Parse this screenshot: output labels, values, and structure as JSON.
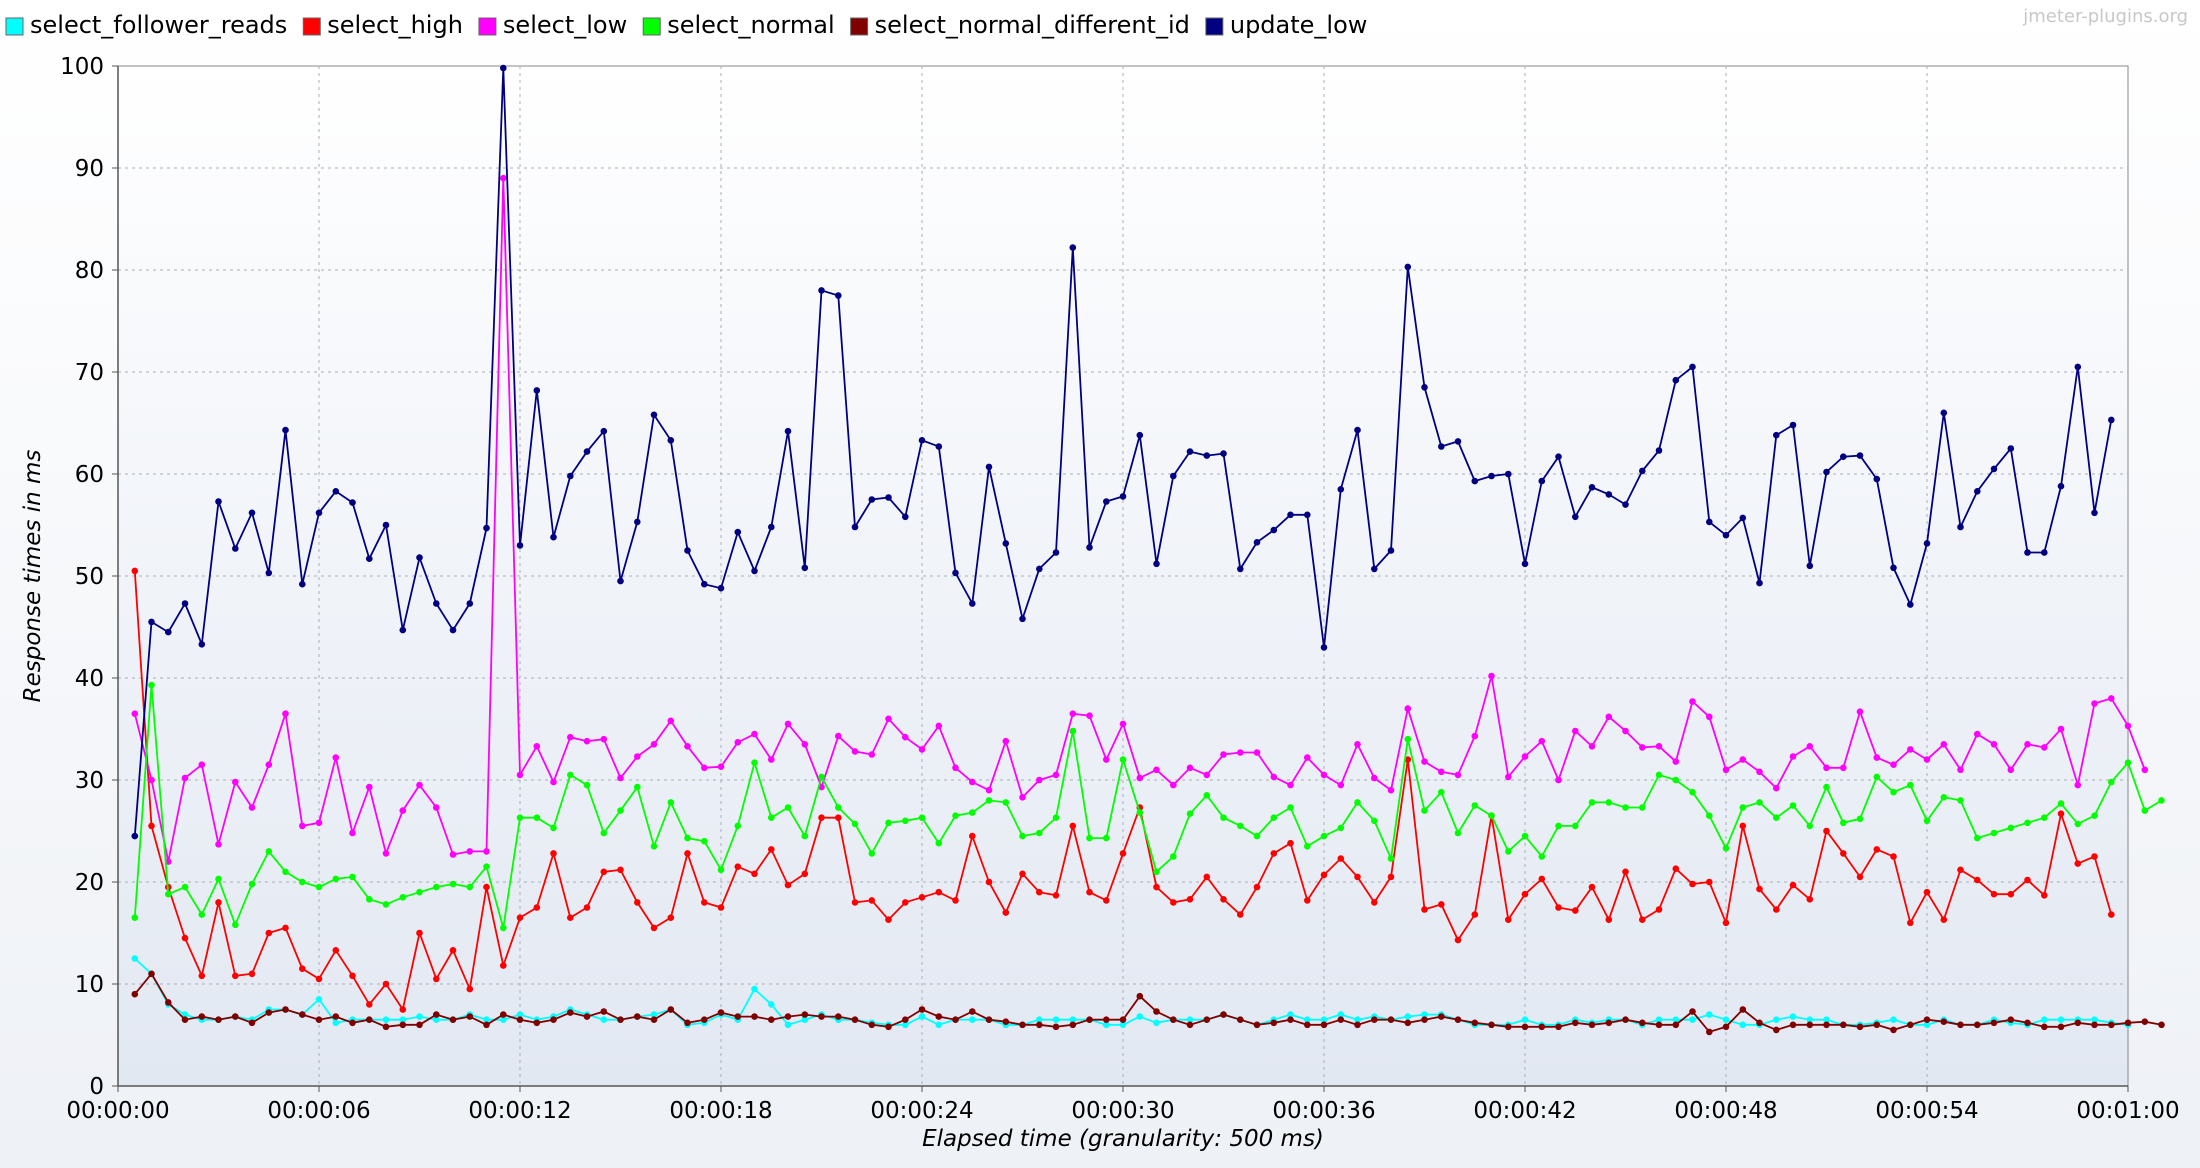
{
  "watermark": "jmeter-plugins.org",
  "chart_data": {
    "type": "line",
    "title": "",
    "xlabel": "Elapsed time (granularity: 500 ms)",
    "ylabel": "Response times in ms",
    "xlim": [
      0,
      60
    ],
    "ylim": [
      0,
      100
    ],
    "x_ticks": [
      0,
      6,
      12,
      18,
      24,
      30,
      36,
      42,
      48,
      54,
      60
    ],
    "x_tick_labels": [
      "00:00:00",
      "00:00:06",
      "00:00:12",
      "00:00:18",
      "00:00:24",
      "00:00:30",
      "00:00:36",
      "00:00:42",
      "00:00:48",
      "00:00:54",
      "00:01:00"
    ],
    "y_ticks": [
      0,
      10,
      20,
      30,
      40,
      50,
      60,
      70,
      80,
      90,
      100
    ],
    "y_tick_labels": [
      "0",
      "10",
      "20",
      "30",
      "40",
      "50",
      "60",
      "70",
      "80",
      "90",
      "100"
    ],
    "grid": true,
    "legend_position": "top",
    "x_start": 0.5,
    "x_step": 0.5,
    "series": [
      {
        "name": "select_follower_reads",
        "color": "#00ffff",
        "values": [
          12.5,
          11,
          8,
          7,
          6.5,
          6.5,
          6.8,
          6.5,
          7.5,
          7.5,
          7,
          8.5,
          6.2,
          6.5,
          6.5,
          6.5,
          6.5,
          6.8,
          6.5,
          6.5,
          7,
          6.5,
          6.5,
          7,
          6.5,
          6.8,
          7.5,
          7,
          6.5,
          6.5,
          6.8,
          7,
          7.5,
          6,
          6.2,
          7,
          6.5,
          9.5,
          8,
          6,
          6.5,
          7,
          6.5,
          6.5,
          6.2,
          6,
          6,
          6.8,
          6,
          6.5,
          6.5,
          6.5,
          6,
          6,
          6.5,
          6.5,
          6.5,
          6.5,
          6,
          6,
          6.8,
          6.2,
          6.5,
          6.5,
          6.5,
          7,
          6.5,
          6,
          6.5,
          7,
          6.5,
          6.5,
          7,
          6.5,
          6.8,
          6.5,
          6.8,
          7,
          7,
          6.5,
          6,
          6,
          6,
          6.5,
          6,
          6,
          6.5,
          6.2,
          6.5,
          6.5,
          6,
          6.5,
          6.5,
          6.5,
          7,
          6.5,
          6,
          6,
          6.5,
          6.8,
          6.5,
          6.5,
          6,
          6,
          6.2,
          6.5,
          6,
          6,
          6.5,
          6,
          6,
          6.5,
          6.2,
          6,
          6.5,
          6.5,
          6.5,
          6.5,
          6.2,
          6
        ]
      },
      {
        "name": "select_high",
        "color": "#ff0000",
        "values": [
          50.5,
          25.5,
          19.5,
          14.5,
          10.8,
          18,
          10.8,
          11,
          15,
          15.5,
          11.5,
          10.5,
          13.3,
          10.8,
          8,
          10,
          7.5,
          15,
          10.5,
          13.3,
          9.5,
          19.5,
          11.8,
          16.5,
          17.5,
          22.8,
          16.5,
          17.5,
          21,
          21.2,
          18,
          15.5,
          16.5,
          22.8,
          18,
          17.5,
          21.5,
          20.8,
          23.2,
          19.7,
          20.8,
          26.3,
          26.3,
          18,
          18.2,
          16.3,
          18,
          18.5,
          19,
          18.2,
          24.5,
          20,
          17,
          20.8,
          19,
          18.7,
          25.5,
          19,
          18.2,
          22.8,
          27.3,
          19.5,
          18,
          18.3,
          20.5,
          18.3,
          16.8,
          19.5,
          22.8,
          23.8,
          18.2,
          20.7,
          22.3,
          20.5,
          18,
          20.5,
          32,
          17.3,
          17.8,
          14.3,
          16.8,
          26.5,
          16.3,
          18.8,
          20.3,
          17.5,
          17.2,
          19.5,
          16.3,
          21,
          16.3,
          17.3,
          21.3,
          19.8,
          20,
          16,
          25.5,
          19.3,
          17.3,
          19.7,
          18.3,
          25,
          22.8,
          20.5,
          23.2,
          22.5,
          16,
          19,
          16.3,
          21.2,
          20.2,
          18.8,
          18.8,
          20.2,
          18.7,
          26.7,
          21.8,
          22.5,
          16.8
        ]
      },
      {
        "name": "select_low",
        "color": "#ff00ff",
        "values": [
          36.5,
          30,
          22,
          30.2,
          31.5,
          23.7,
          29.8,
          27.3,
          31.5,
          36.5,
          25.5,
          25.8,
          32.2,
          24.8,
          29.3,
          22.8,
          27,
          29.5,
          27.3,
          22.7,
          23,
          23,
          89,
          30.5,
          33.3,
          29.8,
          34.2,
          33.8,
          34,
          30.2,
          32.3,
          33.5,
          35.8,
          33.3,
          31.2,
          31.3,
          33.7,
          34.5,
          32,
          35.5,
          33.5,
          29.3,
          34.3,
          32.8,
          32.5,
          36,
          34.2,
          33,
          35.3,
          31.2,
          29.8,
          29,
          33.8,
          28.3,
          30,
          30.5,
          36.5,
          36.3,
          32,
          35.5,
          30.2,
          31,
          29.5,
          31.2,
          30.5,
          32.5,
          32.7,
          32.7,
          30.3,
          29.5,
          32.2,
          30.5,
          29.5,
          33.5,
          30.2,
          29,
          37,
          31.8,
          30.8,
          30.5,
          34.3,
          40.2,
          30.3,
          32.3,
          33.8,
          30,
          34.8,
          33.3,
          36.2,
          34.8,
          33.2,
          33.3,
          31.8,
          37.7,
          36.2,
          31,
          32,
          30.8,
          29.2,
          32.3,
          33.3,
          31.2,
          31.2,
          36.7,
          32.2,
          31.5,
          33,
          32,
          33.5,
          31,
          34.5,
          33.5,
          31,
          33.5,
          33.2,
          35,
          29.5,
          37.5,
          38,
          35.3,
          31
        ]
      },
      {
        "name": "select_normal",
        "color": "#00ff00",
        "values": [
          16.5,
          39.3,
          18.8,
          19.5,
          16.8,
          20.3,
          15.8,
          19.8,
          23,
          21,
          20,
          19.5,
          20.3,
          20.5,
          18.3,
          17.8,
          18.5,
          19,
          19.5,
          19.8,
          19.5,
          21.5,
          15.5,
          26.3,
          26.3,
          25.3,
          30.5,
          29.5,
          24.8,
          27,
          29.3,
          23.5,
          27.8,
          24.3,
          24,
          21.2,
          25.5,
          31.7,
          26.3,
          27.3,
          24.5,
          30.3,
          27.3,
          25.7,
          22.8,
          25.8,
          26,
          26.3,
          23.8,
          26.5,
          26.8,
          28,
          27.8,
          24.5,
          24.8,
          26.3,
          34.8,
          24.3,
          24.3,
          32,
          26.8,
          21,
          22.5,
          26.7,
          28.5,
          26.3,
          25.5,
          24.5,
          26.3,
          27.3,
          23.5,
          24.5,
          25.3,
          27.8,
          26,
          22.3,
          34,
          27,
          28.8,
          24.8,
          27.5,
          26.5,
          23,
          24.5,
          22.5,
          25.5,
          25.5,
          27.8,
          27.8,
          27.3,
          27.3,
          30.5,
          30,
          28.8,
          26.5,
          23.3,
          27.3,
          27.8,
          26.3,
          27.5,
          25.5,
          29.3,
          25.8,
          26.2,
          30.3,
          28.8,
          29.5,
          26,
          28.3,
          28,
          24.3,
          24.8,
          25.3,
          25.8,
          26.3,
          27.7,
          25.7,
          26.5,
          29.8,
          31.7,
          27,
          28
        ]
      },
      {
        "name": "select_normal_different_id",
        "color": "#800000",
        "values": [
          9,
          11,
          8.2,
          6.5,
          6.8,
          6.5,
          6.8,
          6.2,
          7.2,
          7.5,
          7,
          6.5,
          6.8,
          6.2,
          6.5,
          5.8,
          6,
          6,
          7,
          6.5,
          6.8,
          6,
          7,
          6.5,
          6.2,
          6.5,
          7.2,
          6.8,
          7.3,
          6.5,
          6.8,
          6.5,
          7.5,
          6.2,
          6.5,
          7.2,
          6.8,
          6.8,
          6.5,
          6.8,
          7,
          6.8,
          6.8,
          6.5,
          6,
          5.8,
          6.5,
          7.5,
          6.8,
          6.5,
          7.3,
          6.5,
          6.3,
          6,
          6,
          5.8,
          6,
          6.5,
          6.5,
          6.5,
          8.8,
          7.3,
          6.5,
          6,
          6.5,
          7,
          6.5,
          6,
          6.2,
          6.5,
          6,
          6,
          6.5,
          6,
          6.5,
          6.5,
          6.2,
          6.5,
          6.8,
          6.5,
          6.2,
          6,
          5.8,
          5.8,
          5.8,
          5.8,
          6.2,
          6,
          6.2,
          6.5,
          6.2,
          6,
          6,
          7.3,
          5.3,
          5.8,
          7.5,
          6.2,
          5.5,
          6,
          6,
          6,
          6,
          5.8,
          6,
          5.5,
          6,
          6.5,
          6.3,
          6,
          6,
          6.2,
          6.5,
          6.2,
          5.8,
          5.8,
          6.2,
          6,
          6,
          6.2,
          6.3,
          6
        ]
      },
      {
        "name": "update_low",
        "color": "#000080",
        "values": [
          24.5,
          45.5,
          44.5,
          47.3,
          43.3,
          57.3,
          52.7,
          56.2,
          50.3,
          64.3,
          49.2,
          56.2,
          58.3,
          57.2,
          51.7,
          55,
          44.7,
          51.8,
          47.3,
          44.7,
          47.3,
          54.7,
          99.8,
          53,
          68.2,
          53.8,
          59.8,
          62.2,
          64.2,
          49.5,
          55.3,
          65.8,
          63.3,
          52.5,
          49.2,
          48.8,
          54.3,
          50.5,
          54.8,
          64.2,
          50.8,
          78,
          77.5,
          54.8,
          57.5,
          57.7,
          55.8,
          63.3,
          62.7,
          50.3,
          47.3,
          60.7,
          53.2,
          45.8,
          50.7,
          52.3,
          82.2,
          52.8,
          57.3,
          57.8,
          63.8,
          51.2,
          59.8,
          62.2,
          61.8,
          62,
          50.7,
          53.3,
          54.5,
          56,
          56,
          43,
          58.5,
          64.3,
          50.7,
          52.5,
          80.3,
          68.5,
          62.7,
          63.2,
          59.3,
          59.8,
          60,
          51.2,
          59.3,
          61.7,
          55.8,
          58.7,
          58,
          57,
          60.3,
          62.3,
          69.2,
          70.5,
          55.3,
          54,
          55.7,
          49.3,
          63.8,
          64.8,
          51,
          60.2,
          61.7,
          61.8,
          59.5,
          50.8,
          47.2,
          53.2,
          66,
          54.8,
          58.3,
          60.5,
          62.5,
          52.3,
          52.3,
          58.8,
          70.5,
          56.2,
          65.3
        ]
      }
    ]
  }
}
